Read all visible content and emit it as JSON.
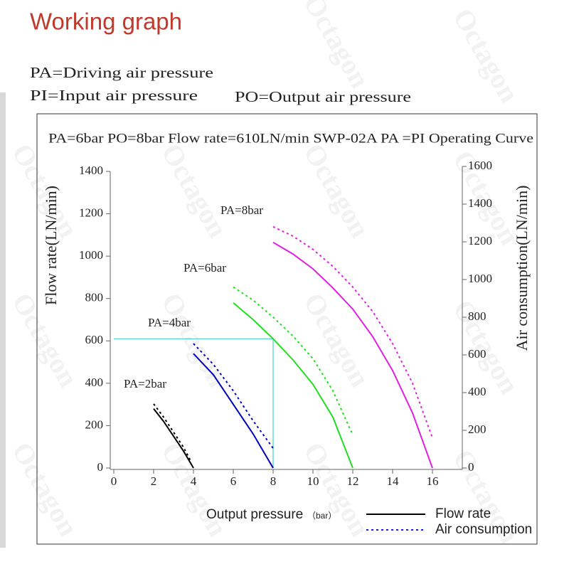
{
  "title": "Working graph",
  "notes": [
    "PA=Driving air pressure",
    "PI=Input air pressure",
    "PO=Output air pressure"
  ],
  "watermark": "Octagon",
  "chart_data": {
    "type": "line",
    "title": "PA=6bar PO=8bar  Flow rate=610LN/min  SWP-02A PA =PI Operating Curve",
    "x_label": "Output pressure",
    "x_unit": "（bar）",
    "y_label": "Flow rate(LN/min)",
    "y2_label": "Air consumption(LN/min)",
    "xlim": [
      0,
      16
    ],
    "xticks": [
      0,
      2,
      4,
      6,
      8,
      10,
      12,
      14,
      16
    ],
    "ylim": [
      0,
      1400
    ],
    "yticks": [
      0,
      200,
      400,
      600,
      800,
      1000,
      1200,
      1400
    ],
    "y2lim": [
      0,
      1600
    ],
    "y2ticks": [
      0,
      200,
      400,
      600,
      800,
      1000,
      1200,
      1400,
      1600
    ],
    "reference": {
      "x": 8,
      "y": 610,
      "color": "#40d0d0"
    },
    "curves": [
      {
        "label": "PA=2bar",
        "color": "#000000",
        "x": [
          2,
          2.5,
          3,
          3.5,
          4
        ],
        "flow": [
          280,
          220,
          150,
          80,
          0
        ],
        "air_x": [
          2,
          2.5,
          3,
          3.5,
          3.9
        ],
        "air": [
          340,
          270,
          190,
          110,
          30
        ]
      },
      {
        "label": "PA=4bar",
        "color": "#0000c0",
        "x": [
          4,
          5,
          6,
          7,
          8
        ],
        "flow": [
          540,
          440,
          300,
          160,
          0
        ],
        "air_x": [
          4,
          5,
          6,
          7,
          8
        ],
        "air": [
          660,
          550,
          410,
          250,
          105
        ]
      },
      {
        "label": "PA=6bar",
        "color": "#22dd22",
        "x": [
          6,
          7,
          8,
          9,
          10,
          11,
          12
        ],
        "flow": [
          780,
          700,
          610,
          510,
          395,
          240,
          0
        ],
        "air_x": [
          6,
          7,
          8,
          9,
          10,
          11,
          12
        ],
        "air": [
          960,
          890,
          800,
          700,
          580,
          410,
          175
        ]
      },
      {
        "label": "PA=8bar",
        "color": "#e020e0",
        "x": [
          8,
          9,
          10,
          11,
          12,
          13,
          14,
          15,
          16
        ],
        "flow": [
          1065,
          1010,
          940,
          850,
          750,
          620,
          460,
          260,
          0
        ],
        "air_x": [
          8,
          9,
          10,
          11,
          12,
          13,
          14,
          15,
          16
        ],
        "air": [
          1280,
          1230,
          1160,
          1070,
          960,
          830,
          660,
          450,
          160
        ]
      }
    ],
    "legend": [
      {
        "name": "Flow rate",
        "color": "#000000",
        "dash": false
      },
      {
        "name": "Air consumption",
        "color": "#1a1aff",
        "dash": true
      }
    ]
  }
}
